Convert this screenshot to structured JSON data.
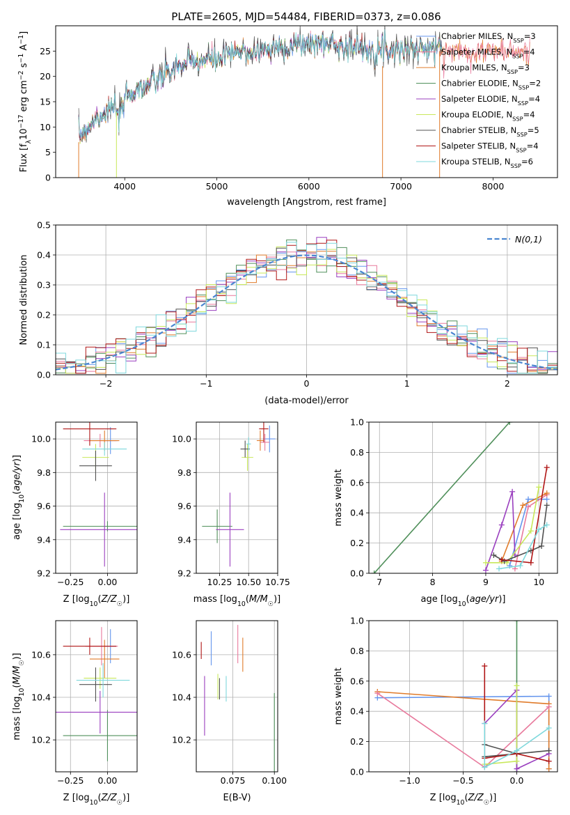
{
  "title": "PLATE=2605, MJD=54484, FIBERID=0373, z=0.086",
  "colors": {
    "Chabrier MILES": "#6495ed",
    "Salpeter MILES": "#e8799c",
    "Kroupa MILES": "#e07b2a",
    "Chabrier ELODIE": "#4f8f5a",
    "Salpeter ELODIE": "#9a3fbf",
    "Kroupa ELODIE": "#c8e85a",
    "Chabrier STELIB": "#505050",
    "Salpeter STELIB": "#b01515",
    "Kroupa STELIB": "#7ed8dc"
  },
  "chart_data": [
    {
      "id": "spectrum",
      "type": "line",
      "xlabel": "wavelength [Angstrom, rest frame]",
      "ylabel": "Flux [f$_\\lambda$10$^{-17}$ erg cm$^{-2}$ s$^{-1}$ A$^{-1}$]",
      "xlim": [
        3250,
        8700
      ],
      "ylim": [
        0,
        30
      ],
      "xticks": [
        4000,
        5000,
        6000,
        7000,
        8000
      ],
      "yticks": [
        0,
        5,
        10,
        15,
        20,
        25
      ],
      "legend_position": "right",
      "legend": [
        {
          "text": "Chabrier MILES, N",
          "sub": "SSP",
          "eq": "=3",
          "color_key": "Chabrier MILES"
        },
        {
          "text": "Salpeter MILES, N",
          "sub": "SSP",
          "eq": "=4",
          "color_key": "Salpeter MILES"
        },
        {
          "text": "Kroupa MILES, N",
          "sub": "SSP",
          "eq": "=3",
          "color_key": "Kroupa MILES"
        },
        {
          "text": "Chabrier ELODIE, N",
          "sub": "SSP",
          "eq": "=2",
          "color_key": "Chabrier ELODIE"
        },
        {
          "text": "Salpeter ELODIE, N",
          "sub": "SSP",
          "eq": "=4",
          "color_key": "Salpeter ELODIE"
        },
        {
          "text": "Kroupa ELODIE, N",
          "sub": "SSP",
          "eq": "=4",
          "color_key": "Kroupa ELODIE"
        },
        {
          "text": "Chabrier STELIB, N",
          "sub": "SSP",
          "eq": "=5",
          "color_key": "Chabrier STELIB"
        },
        {
          "text": "Salpeter STELIB, N",
          "sub": "SSP",
          "eq": "=4",
          "color_key": "Salpeter STELIB"
        },
        {
          "text": "Kroupa STELIB, N",
          "sub": "SSP",
          "eq": "=6",
          "color_key": "Kroupa STELIB"
        }
      ],
      "continuum": {
        "x": [
          3500,
          3600,
          3700,
          3800,
          3900,
          3950,
          4000,
          4100,
          4200,
          4300,
          4400,
          4500,
          4600,
          4800,
          5000,
          5200,
          5400,
          5600,
          5800,
          6000,
          6200,
          6400,
          6600,
          6800,
          7000,
          7200,
          7400,
          7600,
          7800,
          8000,
          8200,
          8400
        ],
        "y": [
          8,
          10,
          12,
          13,
          14,
          11,
          16,
          17,
          18,
          18.5,
          20,
          21,
          22,
          23,
          23.5,
          24.5,
          25,
          25.5,
          26,
          26.5,
          26.5,
          26,
          25.5,
          25.5,
          25.5,
          25.5,
          25.5,
          25,
          25,
          25,
          25,
          24.5
        ]
      }
    },
    {
      "id": "residuals",
      "type": "line",
      "xlabel": "(data-model)/error",
      "ylabel": "Normed distribution",
      "xlim": [
        -2.5,
        2.5
      ],
      "ylim": [
        0,
        0.5
      ],
      "xticks": [
        -2,
        -1,
        0,
        1,
        2
      ],
      "yticks": [
        0.0,
        0.1,
        0.2,
        0.3,
        0.4,
        0.5
      ],
      "reference_label": "N(0,1)",
      "reference_color": "#4a86d0",
      "bin_width": 0.1
    },
    {
      "id": "z-age",
      "type": "scatter",
      "xlabel": "Z [log10(Z/Z☉)]",
      "ylabel": "age  [log10(age/yr)]",
      "xlim": [
        -0.35,
        0.2
      ],
      "ylim": [
        9.2,
        10.1
      ],
      "xticks": [
        -0.25,
        0.0
      ],
      "yticks": [
        9.2,
        9.4,
        9.6,
        9.8,
        10.0
      ],
      "points": [
        {
          "key": "Chabrier MILES",
          "x": 0.02,
          "y": 9.99,
          "xerr": 0.05,
          "yerr": 0.08
        },
        {
          "key": "Salpeter MILES",
          "x": -0.05,
          "y": 9.99,
          "xerr": 0.11,
          "yerr": 0.04
        },
        {
          "key": "Kroupa MILES",
          "x": -0.02,
          "y": 9.99,
          "xerr": 0.1,
          "yerr": 0.06
        },
        {
          "key": "Chabrier ELODIE",
          "x": 0.0,
          "y": 9.48,
          "xerr": 0.3,
          "yerr": 0.03
        },
        {
          "key": "Salpeter ELODIE",
          "x": -0.02,
          "y": 9.46,
          "xerr": 0.3,
          "yerr": 0.22
        },
        {
          "key": "Kroupa ELODIE",
          "x": -0.08,
          "y": 9.89,
          "xerr": 0.09,
          "yerr": 0.08
        },
        {
          "key": "Chabrier STELIB",
          "x": -0.08,
          "y": 9.84,
          "xerr": 0.11,
          "yerr": 0.09
        },
        {
          "key": "Salpeter STELIB",
          "x": -0.12,
          "y": 10.06,
          "xerr": 0.18,
          "yerr": 0.1
        },
        {
          "key": "Kroupa STELIB",
          "x": -0.02,
          "y": 9.94,
          "xerr": 0.15,
          "yerr": 0.04
        }
      ]
    },
    {
      "id": "mass-age",
      "type": "scatter",
      "xlabel": "mass [log10(M/M☉)]",
      "ylabel": "",
      "xlim": [
        10.05,
        10.75
      ],
      "ylim": [
        9.2,
        10.1
      ],
      "xticks": [
        10.25,
        10.5,
        10.75
      ],
      "yticks": [
        9.2,
        9.4,
        9.6,
        9.8,
        10.0
      ],
      "points": [
        {
          "key": "Chabrier MILES",
          "x": 10.68,
          "y": 10.0,
          "xerr": 0.05,
          "yerr": 0.08
        },
        {
          "key": "Salpeter MILES",
          "x": 10.64,
          "y": 9.98,
          "xerr": 0.04,
          "yerr": 0.05
        },
        {
          "key": "Kroupa MILES",
          "x": 10.6,
          "y": 9.99,
          "xerr": 0.03,
          "yerr": 0.06
        },
        {
          "key": "Chabrier ELODIE",
          "x": 10.23,
          "y": 9.48,
          "xerr": 0.13,
          "yerr": 0.1
        },
        {
          "key": "Salpeter ELODIE",
          "x": 10.34,
          "y": 9.46,
          "xerr": 0.12,
          "yerr": 0.22
        },
        {
          "key": "Kroupa ELODIE",
          "x": 10.49,
          "y": 9.89,
          "xerr": 0.05,
          "yerr": 0.08
        },
        {
          "key": "Chabrier STELIB",
          "x": 10.47,
          "y": 9.94,
          "xerr": 0.04,
          "yerr": 0.05
        },
        {
          "key": "Salpeter STELIB",
          "x": 10.63,
          "y": 10.06,
          "xerr": 0.04,
          "yerr": 0.08
        },
        {
          "key": "Kroupa STELIB",
          "x": 10.5,
          "y": 9.97,
          "xerr": 0.02,
          "yerr": 0.04
        }
      ]
    },
    {
      "id": "age-weight",
      "type": "line",
      "xlabel": "age  [log10(age/yr)]",
      "ylabel": "mass weight",
      "xlim": [
        6.8,
        10.35
      ],
      "ylim": [
        0,
        1
      ],
      "xticks": [
        7,
        8,
        9,
        10
      ],
      "yticks": [
        0.0,
        0.2,
        0.4,
        0.6,
        0.8,
        1.0
      ],
      "series": [
        {
          "key": "Chabrier ELODIE",
          "x": [
            6.9,
            9.45
          ],
          "y": [
            0.0,
            1.0
          ]
        },
        {
          "key": "Chabrier MILES",
          "x": [
            9.45,
            9.8,
            10.15
          ],
          "y": [
            0.05,
            0.49,
            0.49
          ]
        },
        {
          "key": "Salpeter MILES",
          "x": [
            9.55,
            9.8,
            10.15
          ],
          "y": [
            0.03,
            0.44,
            0.52
          ]
        },
        {
          "key": "Kroupa MILES",
          "x": [
            9.3,
            9.7,
            10.15
          ],
          "y": [
            0.08,
            0.45,
            0.53
          ]
        },
        {
          "key": "Salpeter ELODIE",
          "x": [
            9.0,
            9.3,
            9.5,
            9.55
          ],
          "y": [
            0.02,
            0.32,
            0.54,
            0.12
          ]
        },
        {
          "key": "Kroupa ELODIE",
          "x": [
            9.0,
            9.4,
            9.85,
            10.0
          ],
          "y": [
            0.07,
            0.07,
            0.28,
            0.57
          ]
        },
        {
          "key": "Chabrier STELIB",
          "x": [
            9.15,
            9.35,
            9.85,
            10.05,
            10.15
          ],
          "y": [
            0.12,
            0.08,
            0.15,
            0.18,
            0.45
          ]
        },
        {
          "key": "Salpeter STELIB",
          "x": [
            9.3,
            9.85,
            10.15
          ],
          "y": [
            0.09,
            0.07,
            0.7
          ]
        },
        {
          "key": "Kroupa STELIB",
          "x": [
            9.25,
            9.65,
            10.0,
            10.15
          ],
          "y": [
            0.03,
            0.05,
            0.29,
            0.32
          ]
        }
      ]
    },
    {
      "id": "z-mass",
      "type": "scatter",
      "xlabel": "Z [log10(Z/Z☉)]",
      "ylabel": "mass [log10(M/M☉)]",
      "xlim": [
        -0.35,
        0.2
      ],
      "ylim": [
        10.05,
        10.76
      ],
      "xticks": [
        -0.25,
        0.0
      ],
      "yticks": [
        10.2,
        10.4,
        10.6
      ],
      "points": [
        {
          "key": "Chabrier MILES",
          "x": 0.02,
          "y": 10.64,
          "xerr": 0.04,
          "yerr": 0.08
        },
        {
          "key": "Salpeter MILES",
          "x": -0.04,
          "y": 10.64,
          "xerr": 0.11,
          "yerr": 0.09
        },
        {
          "key": "Kroupa MILES",
          "x": -0.02,
          "y": 10.58,
          "xerr": 0.1,
          "yerr": 0.09
        },
        {
          "key": "Chabrier ELODIE",
          "x": 0.0,
          "y": 10.22,
          "xerr": 0.3,
          "yerr": 0.12
        },
        {
          "key": "Salpeter ELODIE",
          "x": -0.05,
          "y": 10.33,
          "xerr": 0.3,
          "yerr": 0.1
        },
        {
          "key": "Kroupa ELODIE",
          "x": -0.05,
          "y": 10.49,
          "xerr": 0.11,
          "yerr": 0.05
        },
        {
          "key": "Chabrier STELIB",
          "x": -0.08,
          "y": 10.46,
          "xerr": 0.11,
          "yerr": 0.08
        },
        {
          "key": "Salpeter STELIB",
          "x": -0.12,
          "y": 10.64,
          "xerr": 0.18,
          "yerr": 0.04
        },
        {
          "key": "Kroupa STELIB",
          "x": -0.03,
          "y": 10.48,
          "xerr": 0.18,
          "yerr": 0.08
        }
      ]
    },
    {
      "id": "ebv-mass",
      "type": "scatter",
      "xlabel": "E(B-V)",
      "ylabel": "",
      "xlim": [
        0.053,
        0.102
      ],
      "ylim": [
        10.05,
        10.76
      ],
      "xticks": [
        0.075,
        0.1
      ],
      "yticks": [
        10.2,
        10.4,
        10.6
      ],
      "points": [
        {
          "key": "Chabrier MILES",
          "x": 0.062,
          "y": 10.63,
          "xerr": 0,
          "yerr": 0.08
        },
        {
          "key": "Salpeter MILES",
          "x": 0.078,
          "y": 10.65,
          "xerr": 0,
          "yerr": 0.09
        },
        {
          "key": "Kroupa MILES",
          "x": 0.081,
          "y": 10.6,
          "xerr": 0,
          "yerr": 0.08
        },
        {
          "key": "Chabrier ELODIE",
          "x": 0.1,
          "y": 10.22,
          "xerr": 0,
          "yerr": 0.2
        },
        {
          "key": "Salpeter ELODIE",
          "x": 0.058,
          "y": 10.36,
          "xerr": 0,
          "yerr": 0.14
        },
        {
          "key": "Kroupa ELODIE",
          "x": 0.066,
          "y": 10.45,
          "xerr": 0,
          "yerr": 0.06
        },
        {
          "key": "Chabrier STELIB",
          "x": 0.067,
          "y": 10.44,
          "xerr": 0,
          "yerr": 0.05
        },
        {
          "key": "Salpeter STELIB",
          "x": 0.056,
          "y": 10.62,
          "xerr": 0,
          "yerr": 0.04
        },
        {
          "key": "Kroupa STELIB",
          "x": 0.071,
          "y": 10.44,
          "xerr": 0,
          "yerr": 0.06
        }
      ]
    },
    {
      "id": "z-weight",
      "type": "line",
      "xlabel": "Z [log10(Z/Z☉)]",
      "ylabel": "mass weight",
      "xlim": [
        -1.38,
        0.38
      ],
      "ylim": [
        0,
        1
      ],
      "xticks": [
        -1.0,
        -0.5,
        0.0
      ],
      "yticks": [
        0.0,
        0.2,
        0.4,
        0.6,
        0.8,
        1.0
      ],
      "series": [
        {
          "key": "Chabrier MILES",
          "x": [
            -1.3,
            0.3,
            0.3
          ],
          "y": [
            0.49,
            0.5,
            0.02
          ]
        },
        {
          "key": "Kroupa MILES",
          "x": [
            -1.3,
            0.3,
            0.3
          ],
          "y": [
            0.53,
            0.45,
            0.02
          ]
        },
        {
          "key": "Salpeter MILES",
          "x": [
            -1.3,
            -0.3,
            0.3
          ],
          "y": [
            0.52,
            0.03,
            0.43
          ]
        },
        {
          "key": "Chabrier ELODIE",
          "x": [
            0.0,
            0.0
          ],
          "y": [
            0.0,
            1.0
          ]
        },
        {
          "key": "Salpeter ELODIE",
          "x": [
            -0.3,
            0.0,
            0.0,
            0.3
          ],
          "y": [
            0.32,
            0.54,
            0.02,
            0.12
          ]
        },
        {
          "key": "Kroupa ELODIE",
          "x": [
            -0.3,
            0.0,
            0.0
          ],
          "y": [
            0.05,
            0.07,
            0.57
          ]
        },
        {
          "key": "Chabrier STELIB",
          "x": [
            -0.3,
            0.0,
            0.3,
            -0.3
          ],
          "y": [
            0.18,
            0.12,
            0.14,
            0.1
          ]
        },
        {
          "key": "Salpeter STELIB",
          "x": [
            -0.3,
            -0.3,
            0.0,
            0.3
          ],
          "y": [
            0.7,
            0.09,
            0.12,
            0.07
          ]
        },
        {
          "key": "Kroupa STELIB",
          "x": [
            -0.3,
            -0.3,
            0.0,
            0.3
          ],
          "y": [
            0.32,
            0.03,
            0.14,
            0.29
          ]
        }
      ]
    }
  ]
}
